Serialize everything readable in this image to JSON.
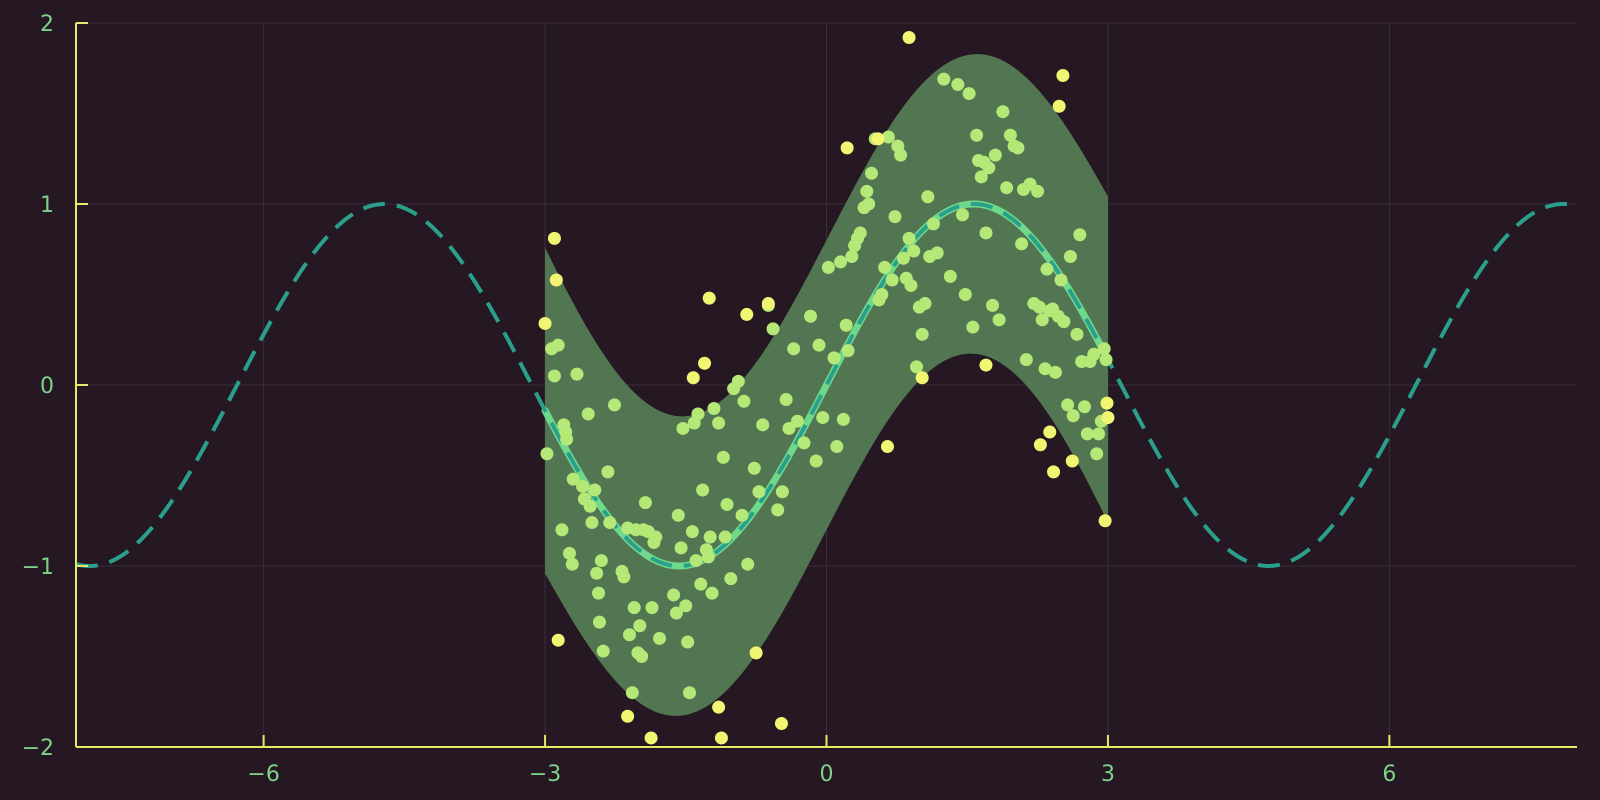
{
  "colors": {
    "background": "#251822",
    "axis": "#e6e86a",
    "tick_text": "#7fd18a",
    "grid": "#3a2e38",
    "band": "#537652",
    "curve_fit": "#6fd98b",
    "curve_true": "#2aa08c",
    "points_in": "#b5e877",
    "points_out": "#f2f572"
  },
  "chart_data": {
    "type": "scatter",
    "xlim": [
      -8,
      8
    ],
    "ylim": [
      -2,
      2
    ],
    "xticks": [
      {
        "value": -6,
        "label": "−6"
      },
      {
        "value": -3,
        "label": "−3"
      },
      {
        "value": 0,
        "label": "0"
      },
      {
        "value": 3,
        "label": "3"
      },
      {
        "value": 6,
        "label": "6"
      }
    ],
    "yticks": [
      {
        "value": 2,
        "label": "2"
      },
      {
        "value": 1,
        "label": "1"
      },
      {
        "value": 0,
        "label": "0"
      },
      {
        "value": -1,
        "label": "−1"
      },
      {
        "value": -2,
        "label": "−2"
      }
    ],
    "grid": true,
    "series": [
      {
        "kind": "band",
        "function": "sin(x) ± (0.8 + 0.1·x²/9)",
        "x_range": [
          -3,
          3
        ]
      },
      {
        "kind": "line",
        "style": "dashed",
        "function": "sin(x)",
        "x_range": [
          -8,
          8
        ]
      },
      {
        "kind": "line",
        "style": "solid",
        "function": "sin(x)",
        "x_range": [
          -3,
          3
        ]
      }
    ],
    "points_inside_band": [
      [
        -2.98,
        -0.38
      ],
      [
        -2.93,
        0.2
      ],
      [
        -2.9,
        0.05
      ],
      [
        -2.86,
        0.22
      ],
      [
        -2.82,
        -0.8
      ],
      [
        -2.8,
        -0.22
      ],
      [
        -2.78,
        -0.26
      ],
      [
        -2.77,
        -0.3
      ],
      [
        -2.74,
        -0.93
      ],
      [
        -2.71,
        -0.99
      ],
      [
        -2.7,
        -0.52
      ],
      [
        -2.66,
        0.06
      ],
      [
        -2.6,
        -0.56
      ],
      [
        -2.58,
        -0.63
      ],
      [
        -2.54,
        -0.16
      ],
      [
        -2.52,
        -0.67
      ],
      [
        -2.5,
        -0.76
      ],
      [
        -2.47,
        -0.58
      ],
      [
        -2.45,
        -1.04
      ],
      [
        -2.43,
        -1.15
      ],
      [
        -2.42,
        -1.31
      ],
      [
        -2.4,
        -0.97
      ],
      [
        -2.38,
        -1.47
      ],
      [
        -2.33,
        -0.48
      ],
      [
        -2.31,
        -0.76
      ],
      [
        -2.26,
        -0.11
      ],
      [
        -2.18,
        -1.03
      ],
      [
        -2.16,
        -1.06
      ],
      [
        -2.12,
        -0.79
      ],
      [
        -2.1,
        -1.38
      ],
      [
        -2.07,
        -1.7
      ],
      [
        -2.05,
        -1.23
      ],
      [
        -2.03,
        -0.8
      ],
      [
        -2.01,
        -1.48
      ],
      [
        -1.99,
        -1.33
      ],
      [
        -1.97,
        -1.5
      ],
      [
        -1.95,
        -0.8
      ],
      [
        -1.93,
        -0.65
      ],
      [
        -1.9,
        -0.81
      ],
      [
        -1.86,
        -1.23
      ],
      [
        -1.84,
        -0.87
      ],
      [
        -1.82,
        -0.84
      ],
      [
        -1.78,
        -1.4
      ],
      [
        -1.63,
        -1.16
      ],
      [
        -1.6,
        -1.26
      ],
      [
        -1.58,
        -0.72
      ],
      [
        -1.55,
        -0.9
      ],
      [
        -1.53,
        -0.24
      ],
      [
        -1.5,
        -1.22
      ],
      [
        -1.48,
        -1.42
      ],
      [
        -1.46,
        -1.7
      ],
      [
        -1.43,
        -0.81
      ],
      [
        -1.41,
        -0.21
      ],
      [
        -1.39,
        -0.97
      ],
      [
        -1.37,
        -0.16
      ],
      [
        -1.34,
        -1.1
      ],
      [
        -1.32,
        -0.58
      ],
      [
        -1.28,
        -0.91
      ],
      [
        -1.26,
        -0.95
      ],
      [
        -1.24,
        -0.84
      ],
      [
        -1.22,
        -1.15
      ],
      [
        -1.2,
        -0.13
      ],
      [
        -1.15,
        -0.21
      ],
      [
        -1.1,
        -0.4
      ],
      [
        -1.08,
        -0.84
      ],
      [
        -1.06,
        -0.66
      ],
      [
        -1.02,
        -1.07
      ],
      [
        -0.99,
        -0.02
      ],
      [
        -0.94,
        0.02
      ],
      [
        -0.9,
        -0.72
      ],
      [
        -0.88,
        -0.09
      ],
      [
        -0.84,
        -0.99
      ],
      [
        -0.77,
        -0.46
      ],
      [
        -0.72,
        -0.59
      ],
      [
        -0.68,
        -0.22
      ],
      [
        -0.62,
        0.44
      ],
      [
        -0.57,
        0.31
      ],
      [
        -0.52,
        -0.69
      ],
      [
        -0.47,
        -0.59
      ],
      [
        -0.43,
        -0.08
      ],
      [
        -0.4,
        -0.24
      ],
      [
        -0.35,
        0.2
      ],
      [
        -0.31,
        -0.2
      ],
      [
        -0.24,
        -0.32
      ],
      [
        -0.17,
        0.38
      ],
      [
        -0.11,
        -0.42
      ],
      [
        -0.08,
        0.22
      ],
      [
        -0.04,
        -0.18
      ],
      [
        0.02,
        0.65
      ],
      [
        0.08,
        0.15
      ],
      [
        0.11,
        -0.34
      ],
      [
        0.15,
        0.68
      ],
      [
        0.18,
        -0.19
      ],
      [
        0.21,
        0.33
      ],
      [
        0.23,
        0.19
      ],
      [
        0.27,
        0.71
      ],
      [
        0.3,
        0.77
      ],
      [
        0.33,
        0.81
      ],
      [
        0.36,
        0.84
      ],
      [
        0.4,
        0.98
      ],
      [
        0.43,
        1.07
      ],
      [
        0.45,
        1.0
      ],
      [
        0.48,
        1.17
      ],
      [
        0.52,
        1.36
      ],
      [
        0.56,
        0.47
      ],
      [
        0.59,
        0.5
      ],
      [
        0.62,
        0.65
      ],
      [
        0.66,
        1.37
      ],
      [
        0.7,
        0.58
      ],
      [
        0.73,
        0.93
      ],
      [
        0.76,
        1.32
      ],
      [
        0.79,
        1.27
      ],
      [
        0.82,
        0.7
      ],
      [
        0.85,
        0.59
      ],
      [
        0.88,
        0.81
      ],
      [
        0.9,
        0.55
      ],
      [
        0.93,
        0.74
      ],
      [
        0.96,
        0.1
      ],
      [
        0.99,
        0.43
      ],
      [
        1.02,
        0.28
      ],
      [
        1.05,
        0.45
      ],
      [
        1.08,
        1.04
      ],
      [
        1.1,
        0.71
      ],
      [
        1.14,
        0.89
      ],
      [
        1.18,
        0.73
      ],
      [
        1.25,
        1.69
      ],
      [
        1.32,
        0.6
      ],
      [
        1.4,
        1.66
      ],
      [
        1.45,
        0.94
      ],
      [
        1.48,
        0.5
      ],
      [
        1.52,
        1.61
      ],
      [
        1.56,
        0.32
      ],
      [
        1.6,
        1.38
      ],
      [
        1.62,
        1.24
      ],
      [
        1.65,
        1.15
      ],
      [
        1.68,
        1.23
      ],
      [
        1.7,
        0.84
      ],
      [
        1.73,
        1.2
      ],
      [
        1.77,
        0.44
      ],
      [
        1.8,
        1.27
      ],
      [
        1.84,
        0.36
      ],
      [
        1.88,
        1.51
      ],
      [
        1.92,
        1.09
      ],
      [
        1.96,
        1.38
      ],
      [
        2.0,
        1.32
      ],
      [
        2.04,
        1.31
      ],
      [
        2.08,
        0.78
      ],
      [
        2.1,
        1.08
      ],
      [
        2.13,
        0.14
      ],
      [
        2.17,
        1.11
      ],
      [
        2.21,
        0.45
      ],
      [
        2.25,
        1.07
      ],
      [
        2.27,
        0.43
      ],
      [
        2.3,
        0.36
      ],
      [
        2.33,
        0.09
      ],
      [
        2.35,
        0.64
      ],
      [
        2.38,
        0.41
      ],
      [
        2.41,
        0.42
      ],
      [
        2.44,
        0.07
      ],
      [
        2.47,
        0.38
      ],
      [
        2.5,
        0.58
      ],
      [
        2.53,
        0.35
      ],
      [
        2.57,
        -0.11
      ],
      [
        2.6,
        0.71
      ],
      [
        2.63,
        -0.17
      ],
      [
        2.67,
        0.28
      ],
      [
        2.7,
        0.83
      ],
      [
        2.72,
        0.13
      ],
      [
        2.75,
        -0.12
      ],
      [
        2.78,
        -0.27
      ],
      [
        2.81,
        0.13
      ],
      [
        2.85,
        0.17
      ],
      [
        2.88,
        -0.38
      ],
      [
        2.9,
        -0.27
      ],
      [
        2.93,
        -0.2
      ],
      [
        2.96,
        0.2
      ],
      [
        2.98,
        0.14
      ]
    ],
    "points_outside_band": [
      [
        -3.0,
        0.34
      ],
      [
        -2.9,
        0.81
      ],
      [
        -2.88,
        0.58
      ],
      [
        -2.86,
        -1.41
      ],
      [
        -2.12,
        -1.83
      ],
      [
        -1.87,
        -1.95
      ],
      [
        -1.42,
        0.04
      ],
      [
        -1.3,
        0.12
      ],
      [
        -1.25,
        0.48
      ],
      [
        -1.15,
        -1.78
      ],
      [
        -1.12,
        -1.95
      ],
      [
        -0.85,
        0.39
      ],
      [
        -0.75,
        -1.48
      ],
      [
        -0.62,
        0.45
      ],
      [
        -0.48,
        -1.87
      ],
      [
        0.22,
        1.31
      ],
      [
        0.55,
        1.36
      ],
      [
        0.65,
        -0.34
      ],
      [
        0.88,
        1.92
      ],
      [
        1.02,
        0.04
      ],
      [
        1.7,
        0.11
      ],
      [
        2.28,
        -0.33
      ],
      [
        2.38,
        -0.26
      ],
      [
        2.42,
        -0.48
      ],
      [
        2.48,
        1.54
      ],
      [
        2.52,
        1.71
      ],
      [
        2.62,
        -0.42
      ],
      [
        2.97,
        -0.75
      ],
      [
        3.0,
        -0.18
      ],
      [
        2.99,
        -0.1
      ]
    ]
  }
}
